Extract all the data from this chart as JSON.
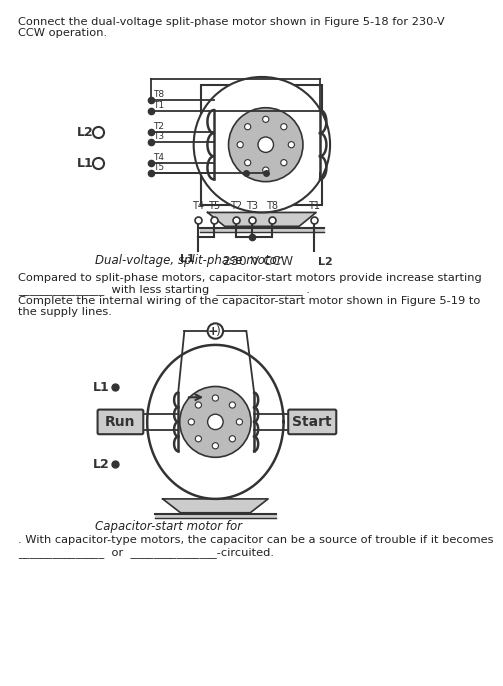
{
  "bg_color": "#ffffff",
  "text_color": "#222222",
  "title_text1": "Connect the dual-voltage split-phase motor shown in Figure 5-18 for 230-V",
  "title_text2": "CCW operation.",
  "caption1": "Dual-voltage, split-phase motor",
  "mid_text1": "Compared to split-phase motors, capacitor-start motors provide increase starting",
  "mid_text2": "_______________  with less starting  _______________ .",
  "mid_text3": "Complete the internal wiring of the capacitor-start motor shown in Figure 5-19 to",
  "mid_text4": "the supply lines.",
  "caption2": "Capacitor-start motor for",
  "bottom_text1": ". With capacitor-type motors, the capacitor can be a source of trouble if it becomes",
  "bottom_text2": "_______________  or  _______________-circuited.",
  "gray_color": "#aaaaaa",
  "light_gray": "#cccccc",
  "rotor_gray": "#bbbbbb",
  "line_color": "#333333"
}
